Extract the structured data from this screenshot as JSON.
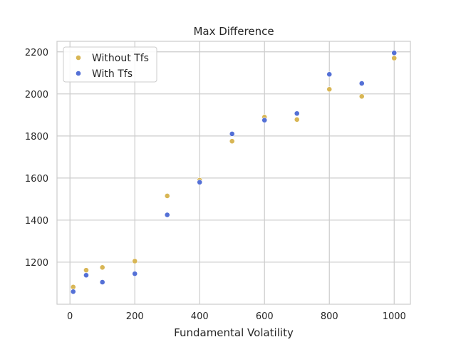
{
  "chart_data": {
    "type": "scatter",
    "title": "Max Difference",
    "xlabel": "Fundamental Volatility",
    "ylabel": "",
    "xlim": [
      -40,
      1050
    ],
    "ylim": [
      1000,
      2250
    ],
    "xticks": [
      0,
      200,
      400,
      600,
      800,
      1000
    ],
    "yticks": [
      1200,
      1400,
      1600,
      1800,
      2000,
      2200
    ],
    "grid": true,
    "legend_position": "top-left",
    "series": [
      {
        "name": "Without Tfs",
        "color": "#d8b655",
        "x": [
          10,
          50,
          100,
          200,
          300,
          400,
          500,
          600,
          700,
          800,
          900,
          1000
        ],
        "y": [
          1082,
          1162,
          1175,
          1205,
          1515,
          1590,
          1775,
          1890,
          1878,
          2022,
          1988,
          2170
        ]
      },
      {
        "name": "With Tfs",
        "color": "#5470d6",
        "x": [
          10,
          50,
          100,
          200,
          300,
          400,
          500,
          600,
          700,
          800,
          900,
          1000
        ],
        "y": [
          1060,
          1138,
          1105,
          1145,
          1425,
          1580,
          1810,
          1875,
          1907,
          2093,
          2050,
          2195
        ]
      }
    ]
  }
}
